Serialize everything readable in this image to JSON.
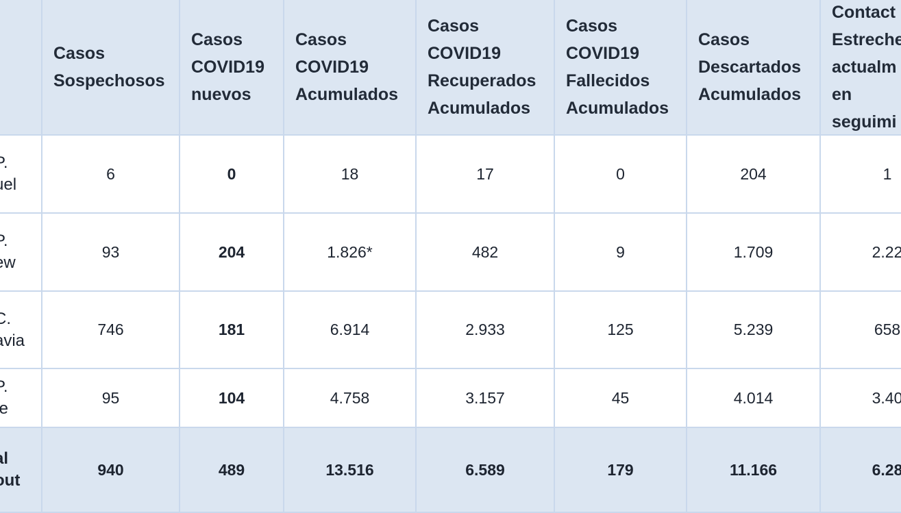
{
  "table": {
    "header": [
      [
        "Casos",
        "Sospechosos"
      ],
      [
        "Casos",
        "COVID19",
        "nuevos"
      ],
      [
        "Casos",
        "COVID19",
        "Acumulados"
      ],
      [
        "Casos",
        "COVID19",
        "Recuperados",
        "Acumulados"
      ],
      [
        "Casos",
        "COVID19",
        "Fallecidos",
        "Acumulados"
      ],
      [
        "Casos",
        "Descartados",
        "Acumulados"
      ],
      [
        "Contact",
        "Estreche",
        "actualm",
        "en",
        "seguimi"
      ]
    ],
    "rows": [
      {
        "label": [
          "P.",
          "uel"
        ],
        "cells": [
          "6",
          "0",
          "18",
          "17",
          "0",
          "204",
          "1"
        ]
      },
      {
        "label": [
          "P.",
          "ew"
        ],
        "cells": [
          "93",
          "204",
          "1.826*",
          "482",
          "9",
          "1.709",
          "2.22"
        ]
      },
      {
        "label": [
          "C.",
          "avia"
        ],
        "cells": [
          "746",
          "181",
          "6.914",
          "2.933",
          "125",
          "5.239",
          "658"
        ]
      },
      {
        "label": [
          "P.",
          "te"
        ],
        "cells": [
          "95",
          "104",
          "4.758",
          "3.157",
          "45",
          "4.014",
          "3.40"
        ]
      },
      {
        "label": [
          "al",
          "out"
        ],
        "cells": [
          "940",
          "489",
          "13.516",
          "6.589",
          "179",
          "11.166",
          "6.28"
        ]
      }
    ]
  }
}
